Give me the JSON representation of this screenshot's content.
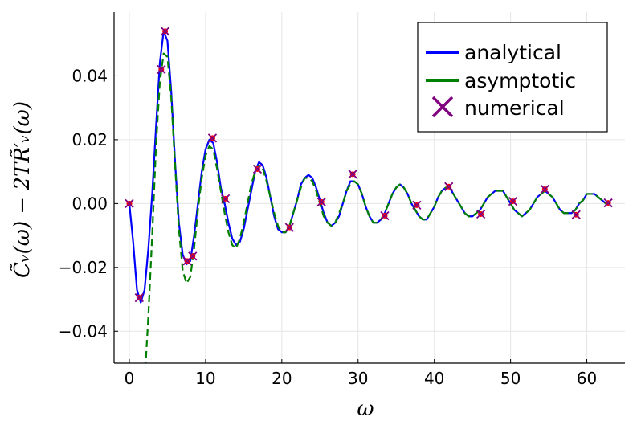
{
  "chart_data": {
    "type": "line",
    "xlabel": "ω",
    "ylabel": "C̃ᵥ(ω) − 2TR̃′ᵥ(ω)",
    "xlim": [
      -2,
      65
    ],
    "ylim": [
      -0.05,
      0.06
    ],
    "x_ticks": [
      0,
      10,
      20,
      30,
      40,
      50,
      60
    ],
    "x_tick_labels": [
      "0",
      "10",
      "20",
      "30",
      "40",
      "50",
      "60"
    ],
    "y_ticks": [
      -0.04,
      -0.02,
      0.0,
      0.02,
      0.04
    ],
    "y_tick_labels": [
      "−0.04",
      "−0.02",
      "0.00",
      "0.02",
      "0.04"
    ],
    "grid": true,
    "legend_position": "top-right",
    "series": [
      {
        "name": "analytical",
        "color": "#0000ff",
        "style": "solid",
        "points": [
          [
            0,
            0
          ],
          [
            0.5,
            -0.012
          ],
          [
            1.0,
            -0.027
          ],
          [
            1.5,
            -0.031
          ],
          [
            2.0,
            -0.027
          ],
          [
            2.5,
            -0.014
          ],
          [
            3.0,
            0.003
          ],
          [
            3.5,
            0.024
          ],
          [
            4.0,
            0.044
          ],
          [
            4.5,
            0.054
          ],
          [
            5.0,
            0.051
          ],
          [
            5.5,
            0.035
          ],
          [
            6.0,
            0.013
          ],
          [
            6.5,
            -0.006
          ],
          [
            7.0,
            -0.016
          ],
          [
            7.5,
            -0.019
          ],
          [
            8.0,
            -0.018
          ],
          [
            8.5,
            -0.01
          ],
          [
            9.0,
            0.0
          ],
          [
            9.5,
            0.01
          ],
          [
            10.0,
            0.017
          ],
          [
            10.5,
            0.02
          ],
          [
            11.0,
            0.019
          ],
          [
            11.5,
            0.013
          ],
          [
            12.0,
            0.005
          ],
          [
            12.5,
            0.0
          ],
          [
            13.0,
            -0.006
          ],
          [
            13.5,
            -0.011
          ],
          [
            14.0,
            -0.013
          ],
          [
            14.5,
            -0.012
          ],
          [
            15.0,
            -0.008
          ],
          [
            15.5,
            -0.002
          ],
          [
            16.0,
            0.004
          ],
          [
            16.5,
            0.01
          ],
          [
            17.0,
            0.013
          ],
          [
            17.5,
            0.012
          ],
          [
            18.0,
            0.008
          ],
          [
            18.5,
            0.002
          ],
          [
            19.0,
            -0.004
          ],
          [
            19.5,
            -0.008
          ],
          [
            20.0,
            -0.009
          ],
          [
            20.5,
            -0.009
          ],
          [
            21.0,
            -0.007
          ],
          [
            21.5,
            -0.003
          ],
          [
            22.0,
            0.001
          ],
          [
            22.5,
            0.006
          ],
          [
            23.0,
            0.008
          ],
          [
            23.5,
            0.009
          ],
          [
            24.0,
            0.008
          ],
          [
            24.5,
            0.005
          ],
          [
            25.0,
            0.001
          ],
          [
            25.5,
            -0.003
          ],
          [
            26.0,
            -0.006
          ],
          [
            26.5,
            -0.007
          ],
          [
            27.0,
            -0.006
          ],
          [
            27.5,
            -0.004
          ],
          [
            28.0,
            0.0
          ],
          [
            28.5,
            0.004
          ],
          [
            29.0,
            0.007
          ],
          [
            29.5,
            0.007
          ],
          [
            30.0,
            0.006
          ],
          [
            30.5,
            0.003
          ],
          [
            31.0,
            -0.001
          ],
          [
            31.5,
            -0.004
          ],
          [
            32.0,
            -0.006
          ],
          [
            32.5,
            -0.006
          ],
          [
            33.0,
            -0.005
          ],
          [
            33.5,
            -0.003
          ],
          [
            34.0,
            0.0
          ],
          [
            34.5,
            0.003
          ],
          [
            35.0,
            0.005
          ],
          [
            35.5,
            0.006
          ],
          [
            36.0,
            0.005
          ],
          [
            36.5,
            0.003
          ],
          [
            37.0,
            0.0
          ],
          [
            37.5,
            -0.002
          ],
          [
            38.0,
            -0.004
          ],
          [
            38.5,
            -0.005
          ],
          [
            39.0,
            -0.005
          ],
          [
            39.5,
            -0.003
          ],
          [
            40.0,
            -0.001
          ],
          [
            40.5,
            0.002
          ],
          [
            41.0,
            0.004
          ],
          [
            41.5,
            0.005
          ],
          [
            42.0,
            0.005
          ],
          [
            42.5,
            0.003
          ],
          [
            43.0,
            0.001
          ],
          [
            43.5,
            -0.001
          ],
          [
            44.0,
            -0.003
          ],
          [
            44.5,
            -0.004
          ],
          [
            45.0,
            -0.004
          ],
          [
            45.5,
            -0.003
          ],
          [
            46.0,
            -0.002
          ],
          [
            46.5,
            0.0
          ],
          [
            47.0,
            0.002
          ],
          [
            47.5,
            0.003
          ],
          [
            48.0,
            0.004
          ],
          [
            48.5,
            0.004
          ],
          [
            49.0,
            0.004
          ],
          [
            49.5,
            0.002
          ],
          [
            50.0,
            0.0
          ],
          [
            50.5,
            -0.002
          ],
          [
            51.0,
            -0.003
          ],
          [
            51.5,
            -0.004
          ],
          [
            52.0,
            -0.003
          ],
          [
            52.5,
            -0.002
          ],
          [
            53.0,
            0.0
          ],
          [
            53.5,
            0.002
          ],
          [
            54.0,
            0.003
          ],
          [
            54.5,
            0.004
          ],
          [
            55.0,
            0.003
          ],
          [
            55.5,
            0.002
          ],
          [
            56.0,
            0.0
          ],
          [
            56.5,
            -0.002
          ],
          [
            57.0,
            -0.003
          ],
          [
            57.5,
            -0.003
          ],
          [
            58.0,
            -0.003
          ],
          [
            58.5,
            -0.002
          ],
          [
            59.0,
            0.0
          ],
          [
            59.5,
            0.001
          ],
          [
            60.0,
            0.003
          ],
          [
            60.5,
            0.003
          ],
          [
            61.0,
            0.003
          ],
          [
            61.5,
            0.002
          ],
          [
            62.0,
            0.001
          ],
          [
            62.5,
            0.0
          ],
          [
            62.9,
            0.0
          ]
        ]
      },
      {
        "name": "asymptotic",
        "color": "#008000",
        "style": "dashed",
        "points": [
          [
            2.1,
            -0.052
          ],
          [
            2.5,
            -0.035
          ],
          [
            3.0,
            -0.01
          ],
          [
            3.5,
            0.018
          ],
          [
            4.0,
            0.038
          ],
          [
            4.5,
            0.047
          ],
          [
            5.0,
            0.046
          ],
          [
            5.5,
            0.033
          ],
          [
            6.0,
            0.012
          ],
          [
            6.5,
            -0.008
          ],
          [
            7.0,
            -0.021
          ],
          [
            7.5,
            -0.025
          ],
          [
            8.0,
            -0.023
          ],
          [
            8.5,
            -0.014
          ],
          [
            9.0,
            -0.002
          ],
          [
            9.5,
            0.008
          ],
          [
            10.0,
            0.015
          ],
          [
            10.5,
            0.018
          ],
          [
            11.0,
            0.017
          ],
          [
            11.5,
            0.011
          ],
          [
            12.0,
            0.004
          ],
          [
            12.5,
            -0.003
          ],
          [
            13.0,
            -0.009
          ],
          [
            13.5,
            -0.013
          ],
          [
            14.0,
            -0.014
          ],
          [
            14.5,
            -0.011
          ],
          [
            15.0,
            -0.006
          ],
          [
            15.5,
            0.0
          ],
          [
            16.0,
            0.006
          ],
          [
            16.5,
            0.01
          ],
          [
            17.0,
            0.012
          ],
          [
            17.5,
            0.011
          ],
          [
            18.0,
            0.007
          ],
          [
            18.5,
            0.002
          ],
          [
            19.0,
            -0.003
          ],
          [
            19.5,
            -0.007
          ],
          [
            20.0,
            -0.009
          ],
          [
            20.5,
            -0.009
          ],
          [
            21.0,
            -0.007
          ],
          [
            21.5,
            -0.003
          ],
          [
            22.0,
            0.001
          ],
          [
            22.5,
            0.005
          ],
          [
            23.0,
            0.008
          ],
          [
            23.5,
            0.008
          ],
          [
            24.0,
            0.007
          ],
          [
            24.5,
            0.004
          ],
          [
            25.0,
            0.0
          ],
          [
            25.5,
            -0.004
          ],
          [
            26.0,
            -0.006
          ],
          [
            26.5,
            -0.007
          ],
          [
            27.0,
            -0.006
          ],
          [
            27.5,
            -0.003
          ],
          [
            28.0,
            0.0
          ],
          [
            28.5,
            0.004
          ],
          [
            29.0,
            0.006
          ],
          [
            29.5,
            0.007
          ],
          [
            30.0,
            0.006
          ],
          [
            30.5,
            0.003
          ],
          [
            31.0,
            -0.001
          ],
          [
            31.5,
            -0.004
          ],
          [
            32.0,
            -0.006
          ],
          [
            32.5,
            -0.006
          ],
          [
            33.0,
            -0.005
          ],
          [
            33.5,
            -0.003
          ],
          [
            34.0,
            0.0
          ],
          [
            34.5,
            0.003
          ],
          [
            35.0,
            0.005
          ],
          [
            35.5,
            0.006
          ],
          [
            36.0,
            0.005
          ],
          [
            36.5,
            0.003
          ],
          [
            37.0,
            0.0
          ],
          [
            37.5,
            -0.002
          ],
          [
            38.0,
            -0.004
          ],
          [
            38.5,
            -0.005
          ],
          [
            39.0,
            -0.005
          ],
          [
            39.5,
            -0.003
          ],
          [
            40.0,
            -0.001
          ],
          [
            40.5,
            0.002
          ],
          [
            41.0,
            0.004
          ],
          [
            41.5,
            0.005
          ],
          [
            42.0,
            0.005
          ],
          [
            42.5,
            0.003
          ],
          [
            43.0,
            0.001
          ],
          [
            43.5,
            -0.001
          ],
          [
            44.0,
            -0.003
          ],
          [
            44.5,
            -0.004
          ],
          [
            45.0,
            -0.004
          ],
          [
            45.5,
            -0.003
          ],
          [
            46.0,
            -0.002
          ],
          [
            46.5,
            0.0
          ],
          [
            47.0,
            0.002
          ],
          [
            47.5,
            0.003
          ],
          [
            48.0,
            0.004
          ],
          [
            48.5,
            0.004
          ],
          [
            49.0,
            0.004
          ],
          [
            49.5,
            0.002
          ],
          [
            50.0,
            0.0
          ],
          [
            50.5,
            -0.002
          ],
          [
            51.0,
            -0.003
          ],
          [
            51.5,
            -0.004
          ],
          [
            52.0,
            -0.003
          ],
          [
            52.5,
            -0.002
          ],
          [
            53.0,
            0.0
          ],
          [
            53.5,
            0.002
          ],
          [
            54.0,
            0.003
          ],
          [
            54.5,
            0.004
          ],
          [
            55.0,
            0.003
          ],
          [
            55.5,
            0.002
          ],
          [
            56.0,
            0.0
          ],
          [
            56.5,
            -0.002
          ],
          [
            57.0,
            -0.003
          ],
          [
            57.5,
            -0.003
          ],
          [
            58.0,
            -0.003
          ],
          [
            58.5,
            -0.002
          ],
          [
            59.0,
            0.0
          ],
          [
            59.5,
            0.001
          ],
          [
            60.0,
            0.003
          ],
          [
            60.5,
            0.003
          ],
          [
            61.0,
            0.003
          ],
          [
            61.5,
            0.002
          ],
          [
            62.0,
            0.001
          ],
          [
            62.5,
            0.0
          ],
          [
            62.9,
            0.0
          ]
        ]
      },
      {
        "name": "numerical",
        "color": "#800080",
        "marker": "x",
        "marker_fill": "#ff0000",
        "points": [
          [
            0.0,
            0.0
          ],
          [
            1.3,
            -0.0295
          ],
          [
            4.2,
            0.042
          ],
          [
            4.7,
            0.054
          ],
          [
            7.6,
            -0.018
          ],
          [
            8.3,
            -0.0165
          ],
          [
            10.9,
            0.0205
          ],
          [
            12.6,
            0.0015
          ],
          [
            16.8,
            0.0108
          ],
          [
            21.0,
            -0.0075
          ],
          [
            25.2,
            0.0005
          ],
          [
            29.3,
            0.0092
          ],
          [
            33.5,
            -0.0038
          ],
          [
            37.7,
            -0.0005
          ],
          [
            41.9,
            0.0053
          ],
          [
            46.1,
            -0.0033
          ],
          [
            50.3,
            0.0007
          ],
          [
            54.5,
            0.0045
          ],
          [
            58.6,
            -0.0035
          ],
          [
            62.8,
            0.0002
          ]
        ]
      }
    ]
  }
}
